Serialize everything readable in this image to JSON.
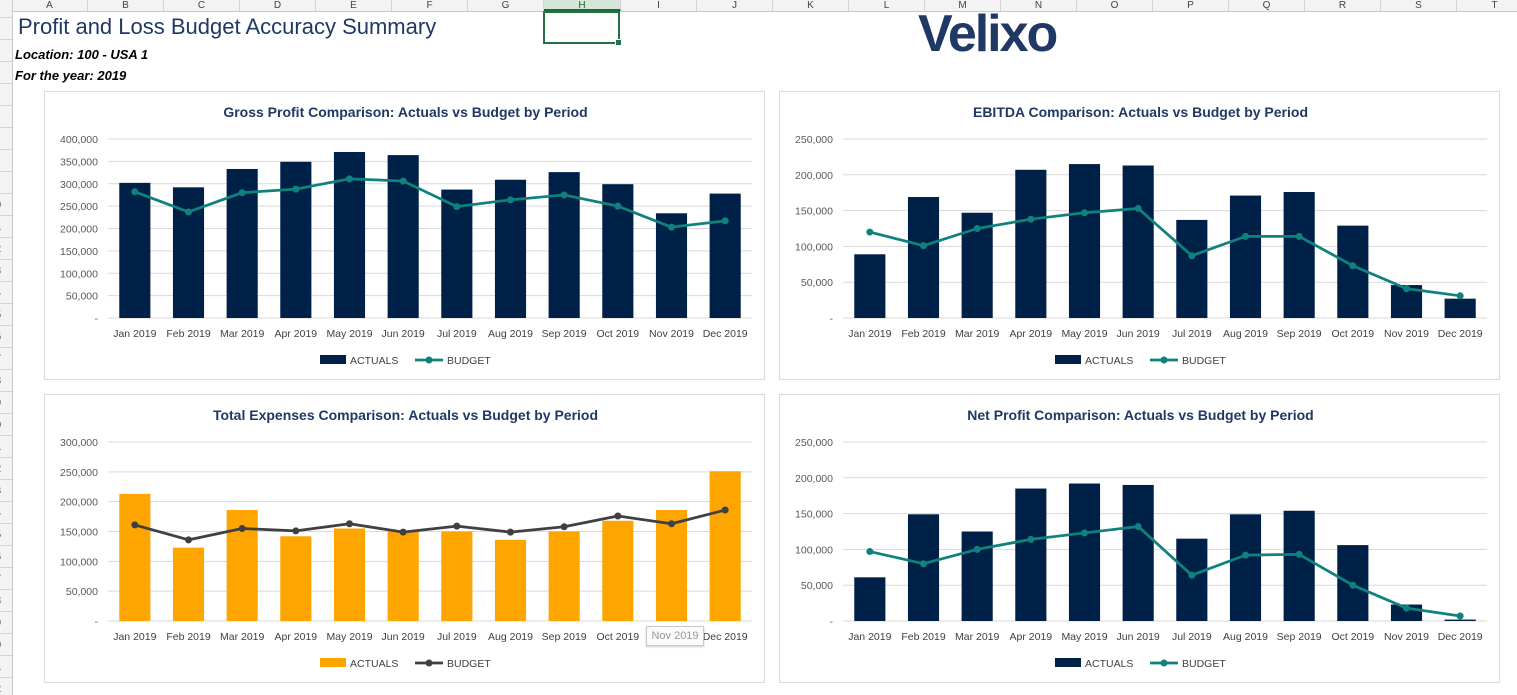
{
  "spreadsheet": {
    "columns": [
      "A",
      "B",
      "C",
      "D",
      "E",
      "F",
      "G",
      "H",
      "I",
      "J",
      "K",
      "L",
      "M",
      "N",
      "O",
      "P",
      "Q",
      "R",
      "S",
      "T"
    ],
    "selected_column": "H",
    "rows": [
      "",
      "",
      "",
      "",
      "",
      "",
      "",
      "",
      "",
      "0",
      "1",
      "2",
      "3",
      "4",
      "5",
      "6",
      "7",
      "8",
      "9",
      "0",
      "1",
      "2",
      "3",
      "4",
      "5",
      "6",
      "7",
      "8",
      "9",
      "0",
      "1",
      "2"
    ]
  },
  "header": {
    "title": "Profit and Loss Budget Accuracy Summary",
    "location": "Location: 100 - USA 1",
    "year": "For the year: 2019",
    "logo_text": "Velixo"
  },
  "tooltip_text": "Nov 2019",
  "colors": {
    "navy": "#002147",
    "teal": "#0f827e",
    "orange": "#ffa500",
    "dark_gray": "#404040",
    "title_text": "#1f3864"
  },
  "chart_data": [
    {
      "type": "bar",
      "title": "Gross Profit Comparison: Actuals vs Budget by Period",
      "categories": [
        "Jan 2019",
        "Feb 2019",
        "Mar 2019",
        "Apr 2019",
        "May 2019",
        "Jun 2019",
        "Jul 2019",
        "Aug 2019",
        "Sep 2019",
        "Oct 2019",
        "Nov 2019",
        "Dec 2019"
      ],
      "series": [
        {
          "name": "ACTUALS",
          "kind": "bar",
          "color": "#002147",
          "values": [
            302000,
            292000,
            333000,
            349000,
            371000,
            364000,
            287000,
            309000,
            326000,
            299000,
            234000,
            278000
          ]
        },
        {
          "name": "BUDGET",
          "kind": "line",
          "color": "#0f827e",
          "values": [
            282000,
            237000,
            280000,
            288000,
            311000,
            306000,
            249000,
            264000,
            275000,
            250000,
            203000,
            217000
          ]
        }
      ],
      "ylim": [
        0,
        400000
      ],
      "yticks": [
        "-",
        "50,000",
        "100,000",
        "150,000",
        "200,000",
        "250,000",
        "300,000",
        "350,000",
        "400,000"
      ],
      "legend": "bottom"
    },
    {
      "type": "bar",
      "title": "EBITDA Comparison: Actuals vs Budget by Period",
      "categories": [
        "Jan 2019",
        "Feb 2019",
        "Mar 2019",
        "Apr 2019",
        "May 2019",
        "Jun 2019",
        "Jul 2019",
        "Aug 2019",
        "Sep 2019",
        "Oct 2019",
        "Nov 2019",
        "Dec 2019"
      ],
      "series": [
        {
          "name": "ACTUALS",
          "kind": "bar",
          "color": "#002147",
          "values": [
            89000,
            169000,
            147000,
            207000,
            215000,
            213000,
            137000,
            171000,
            176000,
            129000,
            46000,
            27000
          ]
        },
        {
          "name": "BUDGET",
          "kind": "line",
          "color": "#0f827e",
          "values": [
            120000,
            101000,
            125000,
            138000,
            147000,
            153000,
            87000,
            114000,
            114000,
            73000,
            41000,
            31000
          ]
        }
      ],
      "ylim": [
        0,
        250000
      ],
      "yticks": [
        "-",
        "50,000",
        "100,000",
        "150,000",
        "200,000",
        "250,000"
      ],
      "legend": "bottom"
    },
    {
      "type": "bar",
      "title": "Total Expenses Comparison: Actuals vs Budget by Period",
      "categories": [
        "Jan 2019",
        "Feb 2019",
        "Mar 2019",
        "Apr 2019",
        "May 2019",
        "Jun 2019",
        "Jul 2019",
        "Aug 2019",
        "Sep 2019",
        "Oct 2019",
        "Nov 2019",
        "Dec 2019"
      ],
      "series": [
        {
          "name": "ACTUALS",
          "kind": "bar",
          "color": "#ffa500",
          "values": [
            213000,
            123000,
            186000,
            142000,
            155000,
            150000,
            150000,
            136000,
            150000,
            168000,
            186000,
            251000
          ]
        },
        {
          "name": "BUDGET",
          "kind": "line",
          "color": "#404040",
          "values": [
            161000,
            136000,
            155000,
            151000,
            163000,
            149000,
            159000,
            149000,
            158000,
            176000,
            163000,
            186000
          ]
        }
      ],
      "ylim": [
        0,
        300000
      ],
      "yticks": [
        "-",
        "50,000",
        "100,000",
        "150,000",
        "200,000",
        "250,000",
        "300,000"
      ],
      "legend": "bottom"
    },
    {
      "type": "bar",
      "title": "Net Profit Comparison: Actuals vs Budget by Period",
      "categories": [
        "Jan 2019",
        "Feb 2019",
        "Mar 2019",
        "Apr 2019",
        "May 2019",
        "Jun 2019",
        "Jul 2019",
        "Aug 2019",
        "Sep 2019",
        "Oct 2019",
        "Nov 2019",
        "Dec 2019"
      ],
      "series": [
        {
          "name": "ACTUALS",
          "kind": "bar",
          "color": "#002147",
          "values": [
            61000,
            149000,
            125000,
            185000,
            192000,
            190000,
            115000,
            149000,
            154000,
            106000,
            23000,
            2000
          ]
        },
        {
          "name": "BUDGET",
          "kind": "line",
          "color": "#0f827e",
          "values": [
            97000,
            80000,
            100000,
            114000,
            123000,
            132000,
            64000,
            92000,
            93000,
            50000,
            18000,
            7000
          ]
        }
      ],
      "ylim": [
        0,
        250000
      ],
      "yticks": [
        "-",
        "50,000",
        "100,000",
        "150,000",
        "200,000",
        "250,000"
      ],
      "legend": "bottom"
    }
  ]
}
